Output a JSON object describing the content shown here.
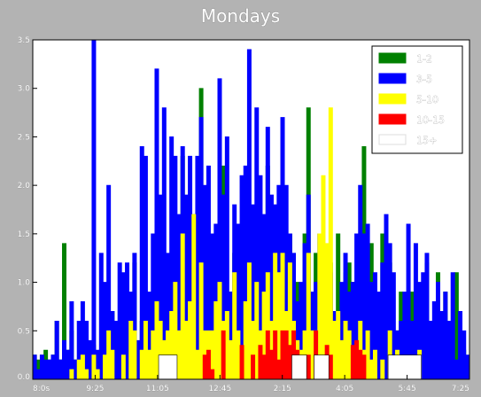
{
  "chart_data": {
    "type": "area",
    "title": "Mondays",
    "xlabel": "",
    "ylabel": "",
    "x_tick_labels": [
      "8:0s",
      "9:25",
      "11:05",
      "12:45",
      "2:15",
      "4:05",
      "5:45",
      "7:25"
    ],
    "y_tick_labels": [
      "0.0",
      "0.5",
      "1.0",
      "1.5",
      "2.0",
      "2.5",
      "3.0",
      "3.5"
    ],
    "ylim": [
      0,
      3.5
    ],
    "grid": false,
    "legend_position": "top-right",
    "x_bin_count": 118,
    "series": [
      {
        "name": "1-2",
        "color": "#008000",
        "values": [
          0.25,
          0.2,
          0.25,
          0.3,
          0.2,
          0.25,
          0.6,
          0.2,
          1.4,
          0.3,
          0.5,
          0.2,
          0.2,
          0.3,
          0.4,
          0.2,
          0.35,
          0.1,
          0.3,
          0.25,
          0.25,
          0.7,
          0.2,
          0.5,
          0.45,
          0.25,
          0.6,
          1.2,
          0.3,
          0.6,
          0.5,
          0.3,
          0.9,
          0.4,
          0.5,
          0.7,
          1.2,
          0.4,
          0.6,
          0.9,
          2.3,
          0.5,
          0.8,
          0.5,
          0.5,
          3.0,
          1.2,
          1.5,
          0.9,
          0.4,
          1.2,
          2.2,
          0.7,
          0.9,
          1.3,
          0.4,
          1.2,
          1.4,
          0.3,
          0.7,
          1.3,
          1.1,
          0.6,
          2.2,
          0.5,
          1.3,
          0.3,
          2.5,
          0.8,
          1.5,
          0.3,
          1.0,
          0.4,
          1.5,
          2.8,
          0.5,
          1.3,
          1.1,
          0.5,
          0.9,
          1.2,
          0.4,
          1.5,
          0.3,
          1.1,
          1.2,
          1.0,
          0.3,
          0.8,
          2.4,
          0.3,
          1.4,
          0.6,
          0.2,
          1.5,
          0.5,
          1.2,
          0.3,
          0.5,
          0.9,
          0.4,
          0.2,
          0.9,
          0.3,
          0.3,
          0.5,
          1.2,
          0.4,
          0.2,
          1.1,
          0.3,
          0.9,
          0.4,
          0.2,
          1.1,
          0.4,
          0.3,
          0.2
        ]
      },
      {
        "name": "3-5",
        "color": "#0000ff",
        "values": [
          0.25,
          0.1,
          0.25,
          0.2,
          0.2,
          0.25,
          0.6,
          0.2,
          0.4,
          0.3,
          0.8,
          0.2,
          0.6,
          0.8,
          0.6,
          0.4,
          3.5,
          0.3,
          1.3,
          1.0,
          2.0,
          0.7,
          0.6,
          1.2,
          1.1,
          1.2,
          0.9,
          1.3,
          0.4,
          2.4,
          2.3,
          0.9,
          1.5,
          3.2,
          1.9,
          2.8,
          1.3,
          2.5,
          2.3,
          1.7,
          2.4,
          1.9,
          2.3,
          1.7,
          2.3,
          2.7,
          2.0,
          2.2,
          1.5,
          1.6,
          3.1,
          1.9,
          2.5,
          0.9,
          1.8,
          1.6,
          2.1,
          2.2,
          3.4,
          1.8,
          2.8,
          2.1,
          1.7,
          2.6,
          1.9,
          1.8,
          2.0,
          2.7,
          2.0,
          1.5,
          1.3,
          0.8,
          1.0,
          1.4,
          1.9,
          0.9,
          1.0,
          1.5,
          0.8,
          1.2,
          1.1,
          0.7,
          0.6,
          1.0,
          1.3,
          0.9,
          1.0,
          1.5,
          2.0,
          1.5,
          1.6,
          1.0,
          1.1,
          0.9,
          1.2,
          1.7,
          1.4,
          1.1,
          0.5,
          0.6,
          0.9,
          1.6,
          0.6,
          1.4,
          1.0,
          1.1,
          1.3,
          0.6,
          0.8,
          1.0,
          0.7,
          0.9,
          0.6,
          1.1,
          0.2,
          0.7,
          0.5,
          0.25
        ]
      },
      {
        "name": "5-10",
        "color": "#ffff00",
        "values": [
          0.0,
          0.0,
          0.0,
          0.0,
          0.0,
          0.0,
          0.0,
          0.0,
          0.0,
          0.0,
          0.1,
          0.0,
          0.2,
          0.25,
          0.1,
          0.0,
          0.25,
          0.1,
          0.0,
          0.25,
          0.5,
          0.3,
          0.0,
          0.0,
          0.25,
          0.0,
          0.6,
          0.5,
          0.0,
          0.3,
          0.6,
          0.3,
          0.5,
          0.8,
          0.6,
          0.4,
          0.5,
          0.7,
          1.0,
          0.5,
          1.5,
          0.6,
          0.8,
          1.7,
          0.3,
          1.2,
          0.5,
          0.5,
          0.5,
          0.8,
          1.0,
          0.6,
          0.7,
          0.4,
          1.1,
          0.5,
          0.3,
          0.8,
          1.2,
          0.6,
          1.0,
          0.5,
          0.9,
          1.1,
          0.6,
          1.3,
          1.1,
          1.3,
          0.7,
          1.2,
          0.6,
          0.4,
          0.3,
          0.5,
          1.3,
          0.5,
          0.5,
          1.5,
          2.1,
          1.4,
          2.8,
          0.6,
          0.7,
          0.4,
          0.6,
          0.5,
          0.3,
          0.2,
          0.6,
          0.3,
          0.5,
          0.2,
          0.3,
          0.0,
          0.2,
          0.0,
          0.5,
          0.2,
          0.3,
          0.2,
          0.0,
          0.2,
          0.0,
          0.0,
          0.3,
          0.0,
          0.0,
          0.0,
          0.0,
          0.0,
          0.0,
          0.0,
          0.0,
          0.0,
          0.0,
          0.0,
          0.0,
          0.0
        ]
      },
      {
        "name": "10-15",
        "color": "#ff0000",
        "values": [
          0.0,
          0.0,
          0.0,
          0.0,
          0.0,
          0.0,
          0.0,
          0.0,
          0.0,
          0.0,
          0.0,
          0.0,
          0.0,
          0.0,
          0.0,
          0.0,
          0.0,
          0.0,
          0.0,
          0.0,
          0.0,
          0.0,
          0.0,
          0.0,
          0.0,
          0.0,
          0.0,
          0.0,
          0.0,
          0.0,
          0.0,
          0.0,
          0.0,
          0.0,
          0.0,
          0.0,
          0.0,
          0.0,
          0.0,
          0.0,
          0.0,
          0.0,
          0.0,
          0.0,
          0.0,
          0.0,
          0.25,
          0.3,
          0.1,
          0.0,
          0.0,
          0.5,
          0.0,
          0.0,
          0.0,
          0.0,
          0.35,
          0.0,
          0.0,
          0.25,
          0.0,
          0.35,
          0.25,
          0.5,
          0.3,
          0.5,
          0.2,
          0.5,
          0.5,
          0.35,
          0.5,
          0.3,
          0.0,
          0.2,
          0.25,
          0.0,
          0.5,
          0.2,
          0.0,
          0.35,
          0.25,
          0.0,
          0.0,
          0.0,
          0.0,
          0.0,
          0.35,
          0.4,
          0.3,
          0.25,
          0.0,
          0.0,
          0.0,
          0.0,
          0.0,
          0.0,
          0.0,
          0.0,
          0.0,
          0.0,
          0.0,
          0.0,
          0.0,
          0.0,
          0.0,
          0.0,
          0.0,
          0.0,
          0.0,
          0.0,
          0.0,
          0.0,
          0.0,
          0.0,
          0.0,
          0.0,
          0.0,
          0.0
        ]
      },
      {
        "name": "15+",
        "color": "#ffffff",
        "values": [
          0.0,
          0.0,
          0.0,
          0.0,
          0.0,
          0.0,
          0.0,
          0.0,
          0.0,
          0.0,
          0.0,
          0.0,
          0.0,
          0.0,
          0.0,
          0.0,
          0.0,
          0.0,
          0.0,
          0.0,
          0.0,
          0.0,
          0.0,
          0.0,
          0.0,
          0.0,
          0.0,
          0.0,
          0.0,
          0.0,
          0.0,
          0.0,
          0.0,
          0.0,
          0.25,
          0.25,
          0.25,
          0.25,
          0.25,
          0.0,
          0.0,
          0.0,
          0.0,
          0.0,
          0.0,
          0.0,
          0.0,
          0.0,
          0.0,
          0.0,
          0.0,
          0.0,
          0.0,
          0.0,
          0.0,
          0.0,
          0.0,
          0.0,
          0.0,
          0.0,
          0.0,
          0.0,
          0.0,
          0.0,
          0.0,
          0.0,
          0.0,
          0.0,
          0.0,
          0.0,
          0.25,
          0.25,
          0.25,
          0.25,
          0.0,
          0.0,
          0.25,
          0.25,
          0.25,
          0.25,
          0.0,
          0.0,
          0.0,
          0.0,
          0.0,
          0.0,
          0.0,
          0.0,
          0.0,
          0.0,
          0.0,
          0.0,
          0.0,
          0.0,
          0.0,
          0.0,
          0.25,
          0.25,
          0.25,
          0.25,
          0.25,
          0.25,
          0.25,
          0.25,
          0.25,
          0.0,
          0.0,
          0.0,
          0.0,
          0.0,
          0.0,
          0.0,
          0.0,
          0.0,
          0.0,
          0.0,
          0.0,
          0.0
        ]
      }
    ]
  }
}
